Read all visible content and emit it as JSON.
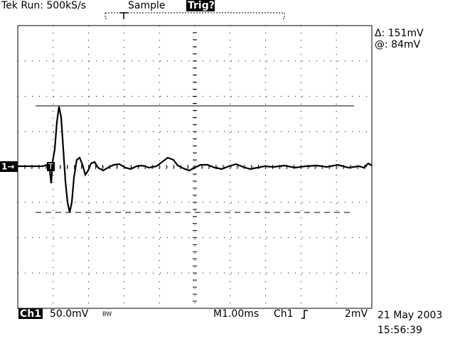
{
  "header": {
    "status": "Tek Run: 500kS/s",
    "mode": "Sample",
    "trigger_state": "Trig?"
  },
  "cursor_readout": {
    "delta": "Δ: 151mV",
    "at": "@: 84mV"
  },
  "markers": {
    "channel": "1→",
    "trigger": "T"
  },
  "footer": {
    "channel": "Ch1",
    "scale": "50.0mV",
    "bandwidth": "BW",
    "timebase": "M1.00ms",
    "trigger_source": "Ch1",
    "trigger_level": "2mV",
    "date": "21 May 2003",
    "time": "15:56:39"
  }
}
